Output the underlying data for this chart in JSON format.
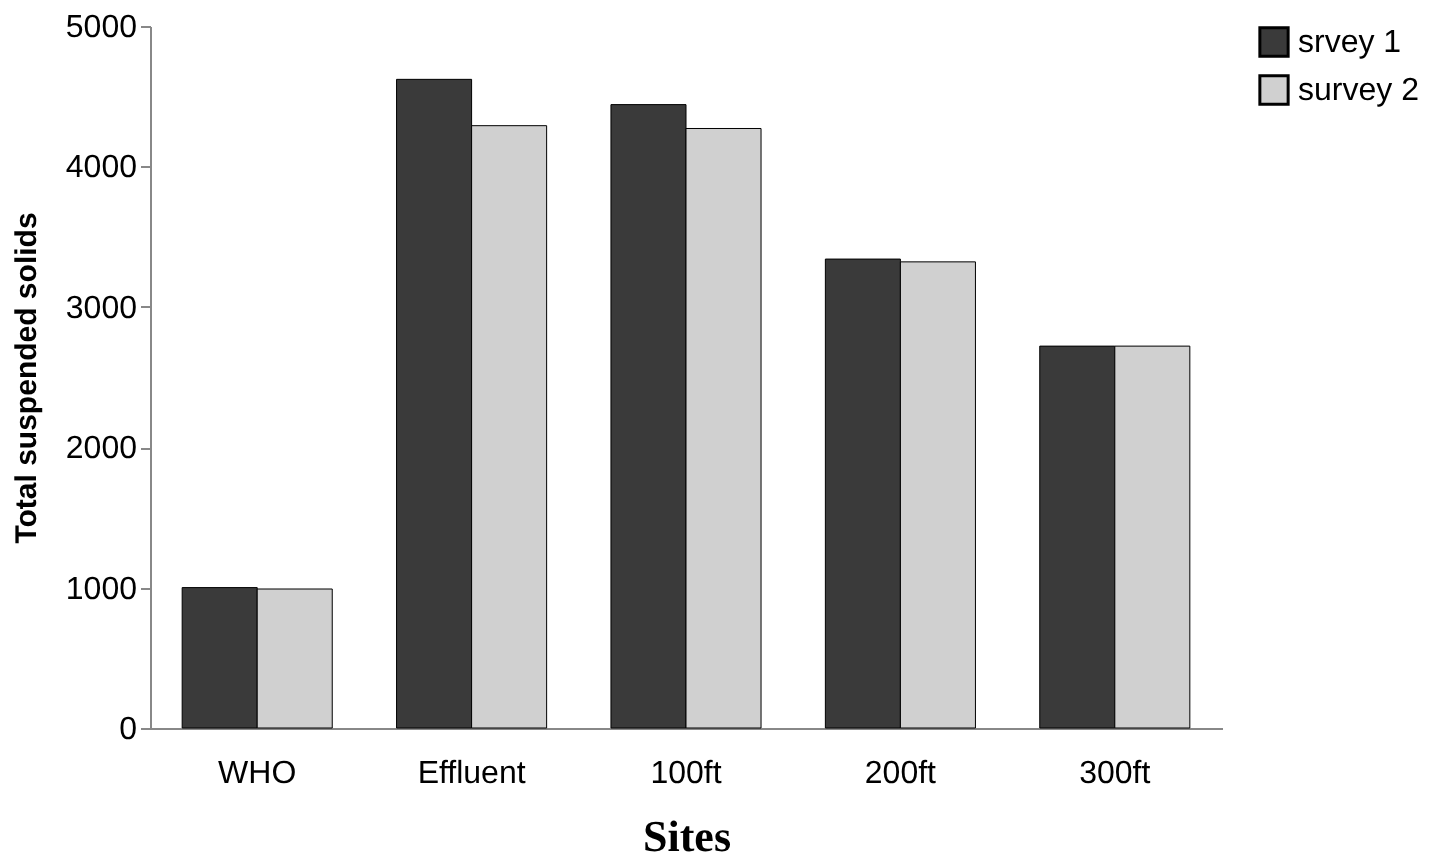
{
  "chart_data": {
    "type": "bar",
    "xlabel": "Sites",
    "ylabel": "Total suspended solids",
    "categories": [
      "WHO",
      "Effluent",
      "100ft",
      "200ft",
      "300ft"
    ],
    "series": [
      {
        "name": "srvey 1",
        "color": "#3a3a3a",
        "values": [
          1000,
          4620,
          4440,
          3340,
          2720
        ]
      },
      {
        "name": "survey 2",
        "color": "#d0d0d0",
        "values": [
          990,
          4290,
          4270,
          3320,
          2720
        ]
      }
    ],
    "ylim": [
      0,
      5000
    ],
    "yticks": [
      0,
      1000,
      2000,
      3000,
      4000,
      5000
    ],
    "grid": false,
    "legend": "right"
  }
}
